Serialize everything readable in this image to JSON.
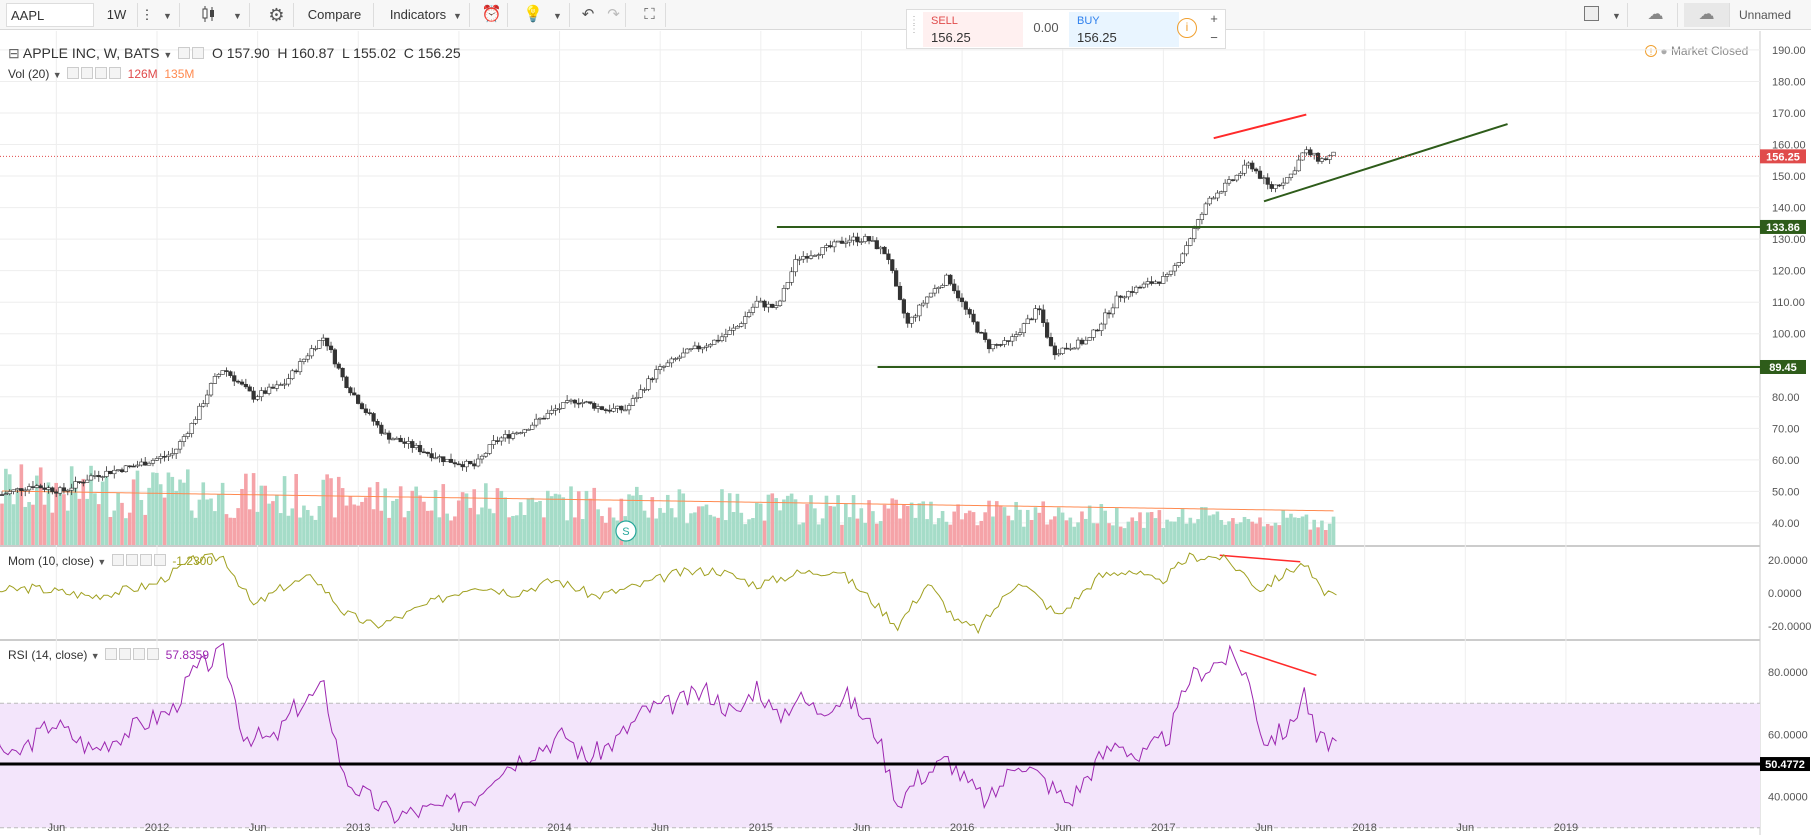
{
  "toolbar": {
    "symbol": "AAPL",
    "interval": "1W",
    "compare_label": "Compare",
    "indicators_label": "Indicators",
    "layout_name": "Unnamed"
  },
  "trade": {
    "sell_label": "SELL",
    "sell_price": "156.25",
    "spread": "0.00",
    "buy_label": "BUY",
    "buy_price": "156.25",
    "plus": "+",
    "minus": "−"
  },
  "status": {
    "market": "Market Closed"
  },
  "colors": {
    "up": "#26a69a",
    "down": "#ef5350",
    "level_line": "#2e5c1a",
    "divergence": "#ff2a2a",
    "mom_line": "#a0a020",
    "rsi_line": "#9c27b0",
    "rsi_band": "#f3e5fb",
    "vol_ma": "#ff8a50",
    "last_price_bg": "#e04b4b"
  },
  "legend": {
    "title": "APPLE INC, W, BATS",
    "open": "O 157.90",
    "high": "H 160.87",
    "low": "L 155.02",
    "close": "C 156.25",
    "vol_title": "Vol (20)",
    "vol_val1": "126M",
    "vol_val2": "135M",
    "mom_title": "Mom (10, close)",
    "mom_val": "-1.2300",
    "rsi_title": "RSI (14, close)",
    "rsi_val": "57.8359"
  },
  "chart_data": {
    "type": "candlestick",
    "symbol": "AAPL",
    "timeframe": "W",
    "price_axis": [
      "190.00",
      "180.00",
      "170.00",
      "160.00",
      "150.00",
      "140.00",
      "130.00",
      "120.00",
      "110.00",
      "100.00",
      "90.00",
      "80.00",
      "70.00",
      "60.00",
      "50.00",
      "40.00"
    ],
    "price_range": [
      33,
      196
    ],
    "price_labels": [
      {
        "value": 156.25,
        "text": "156.25",
        "color": "#e04b4b"
      },
      {
        "value": 133.86,
        "text": "133.86",
        "color": "#2e5c1a"
      },
      {
        "value": 89.45,
        "text": "89.45",
        "color": "#2e5c1a"
      }
    ],
    "horizontal_levels": [
      {
        "value": 133.86,
        "from": 2015.0,
        "to": 2019.5
      },
      {
        "value": 89.45,
        "from": 2015.5,
        "to": 2019.5
      }
    ],
    "trendlines": [
      {
        "x1": 2017.42,
        "y1": 142.0,
        "x2": 2018.63,
        "y2": 166.5,
        "color": "#2e5c1a"
      },
      {
        "x1": 2017.17,
        "y1": 162.0,
        "x2": 2017.63,
        "y2": 169.5,
        "color": "#ff2a2a"
      }
    ],
    "time_axis": [
      "Jun",
      "2012",
      "Jun",
      "2013",
      "Jun",
      "2014",
      "Jun",
      "2015",
      "Jun",
      "2016",
      "Jun",
      "2017",
      "Jun",
      "2018",
      "Jun",
      "2019"
    ],
    "price_points": [
      [
        2011.0,
        51
      ],
      [
        2011.15,
        49
      ],
      [
        2011.3,
        52
      ],
      [
        2011.45,
        50
      ],
      [
        2011.6,
        55
      ],
      [
        2011.8,
        58
      ],
      [
        2012.0,
        62
      ],
      [
        2012.1,
        72
      ],
      [
        2012.2,
        85
      ],
      [
        2012.25,
        89
      ],
      [
        2012.4,
        80
      ],
      [
        2012.55,
        84
      ],
      [
        2012.7,
        96
      ],
      [
        2012.75,
        99
      ],
      [
        2012.85,
        85
      ],
      [
        2012.95,
        76
      ],
      [
        2013.05,
        68
      ],
      [
        2013.2,
        64
      ],
      [
        2013.35,
        60
      ],
      [
        2013.5,
        58
      ],
      [
        2013.6,
        66
      ],
      [
        2013.75,
        70
      ],
      [
        2013.9,
        76
      ],
      [
        2014.0,
        79
      ],
      [
        2014.15,
        76
      ],
      [
        2014.25,
        76
      ],
      [
        2014.4,
        88
      ],
      [
        2014.55,
        94
      ],
      [
        2014.7,
        98
      ],
      [
        2014.8,
        102
      ],
      [
        2014.9,
        110
      ],
      [
        2015.0,
        108
      ],
      [
        2015.1,
        124
      ],
      [
        2015.25,
        127
      ],
      [
        2015.35,
        130
      ],
      [
        2015.45,
        130
      ],
      [
        2015.55,
        125
      ],
      [
        2015.6,
        112
      ],
      [
        2015.65,
        103
      ],
      [
        2015.75,
        112
      ],
      [
        2015.85,
        118
      ],
      [
        2015.95,
        106
      ],
      [
        2016.05,
        96
      ],
      [
        2016.15,
        97
      ],
      [
        2016.3,
        108
      ],
      [
        2016.37,
        94
      ],
      [
        2016.45,
        96
      ],
      [
        2016.55,
        98
      ],
      [
        2016.7,
        112
      ],
      [
        2016.85,
        116
      ],
      [
        2016.95,
        118
      ],
      [
        2017.05,
        130
      ],
      [
        2017.15,
        143
      ],
      [
        2017.25,
        148
      ],
      [
        2017.35,
        154
      ],
      [
        2017.45,
        146
      ],
      [
        2017.55,
        150
      ],
      [
        2017.62,
        158
      ],
      [
        2017.7,
        155
      ],
      [
        2017.78,
        157
      ]
    ],
    "momentum": {
      "axis": [
        "20.0000",
        "0.0000",
        "-20.0000"
      ],
      "range": [
        -28,
        28
      ],
      "points": [
        [
          2011.0,
          0
        ],
        [
          2011.3,
          3
        ],
        [
          2011.6,
          -2
        ],
        [
          2011.9,
          5
        ],
        [
          2012.1,
          20
        ],
        [
          2012.25,
          22
        ],
        [
          2012.4,
          -8
        ],
        [
          2012.55,
          4
        ],
        [
          2012.7,
          10
        ],
        [
          2012.85,
          -12
        ],
        [
          2013.0,
          -20
        ],
        [
          2013.1,
          -16
        ],
        [
          2013.3,
          -5
        ],
        [
          2013.5,
          5
        ],
        [
          2013.7,
          0
        ],
        [
          2013.9,
          8
        ],
        [
          2014.1,
          -2
        ],
        [
          2014.3,
          4
        ],
        [
          2014.5,
          12
        ],
        [
          2014.7,
          14
        ],
        [
          2014.9,
          5
        ],
        [
          2015.1,
          12
        ],
        [
          2015.3,
          14
        ],
        [
          2015.45,
          -2
        ],
        [
          2015.6,
          -20
        ],
        [
          2015.75,
          6
        ],
        [
          2015.9,
          -18
        ],
        [
          2016.0,
          -22
        ],
        [
          2016.2,
          8
        ],
        [
          2016.4,
          -14
        ],
        [
          2016.6,
          10
        ],
        [
          2016.75,
          14
        ],
        [
          2016.9,
          6
        ],
        [
          2017.05,
          22
        ],
        [
          2017.2,
          22
        ],
        [
          2017.3,
          14
        ],
        [
          2017.4,
          2
        ],
        [
          2017.55,
          14
        ],
        [
          2017.62,
          18
        ],
        [
          2017.7,
          2
        ],
        [
          2017.78,
          -1.23
        ]
      ]
    },
    "rsi": {
      "axis": [
        "80.0000",
        "60.0000",
        "40.0000"
      ],
      "range": [
        28,
        90
      ],
      "band": [
        30,
        70
      ],
      "level": {
        "value": 50.4772,
        "text": "50.4772"
      },
      "points": [
        [
          2011.0,
          68
        ],
        [
          2011.2,
          52
        ],
        [
          2011.4,
          64
        ],
        [
          2011.6,
          55
        ],
        [
          2011.8,
          62
        ],
        [
          2012.0,
          68
        ],
        [
          2012.1,
          80
        ],
        [
          2012.25,
          86
        ],
        [
          2012.35,
          60
        ],
        [
          2012.5,
          58
        ],
        [
          2012.6,
          68
        ],
        [
          2012.75,
          75
        ],
        [
          2012.85,
          46
        ],
        [
          2013.0,
          38
        ],
        [
          2013.1,
          34
        ],
        [
          2013.3,
          36
        ],
        [
          2013.5,
          40
        ],
        [
          2013.6,
          48
        ],
        [
          2013.8,
          55
        ],
        [
          2013.95,
          60
        ],
        [
          2014.05,
          52
        ],
        [
          2014.2,
          58
        ],
        [
          2014.35,
          68
        ],
        [
          2014.5,
          70
        ],
        [
          2014.65,
          74
        ],
        [
          2014.8,
          66
        ],
        [
          2014.9,
          76
        ],
        [
          2015.0,
          65
        ],
        [
          2015.1,
          72
        ],
        [
          2015.2,
          68
        ],
        [
          2015.35,
          72
        ],
        [
          2015.5,
          60
        ],
        [
          2015.6,
          38
        ],
        [
          2015.7,
          46
        ],
        [
          2015.85,
          52
        ],
        [
          2015.95,
          44
        ],
        [
          2016.05,
          38
        ],
        [
          2016.2,
          52
        ],
        [
          2016.35,
          44
        ],
        [
          2016.45,
          38
        ],
        [
          2016.6,
          52
        ],
        [
          2016.7,
          58
        ],
        [
          2016.8,
          52
        ],
        [
          2016.95,
          60
        ],
        [
          2017.05,
          78
        ],
        [
          2017.15,
          82
        ],
        [
          2017.25,
          85
        ],
        [
          2017.33,
          80
        ],
        [
          2017.42,
          58
        ],
        [
          2017.55,
          62
        ],
        [
          2017.62,
          74
        ],
        [
          2017.68,
          58
        ],
        [
          2017.78,
          57.84
        ]
      ]
    },
    "divergence_lines": [
      {
        "pane": "momentum",
        "x1": 2017.2,
        "y1": 23,
        "x2": 2017.6,
        "y2": 19
      },
      {
        "pane": "rsi",
        "x1": 2017.3,
        "y1": 87,
        "x2": 2017.68,
        "y2": 79
      }
    ]
  }
}
